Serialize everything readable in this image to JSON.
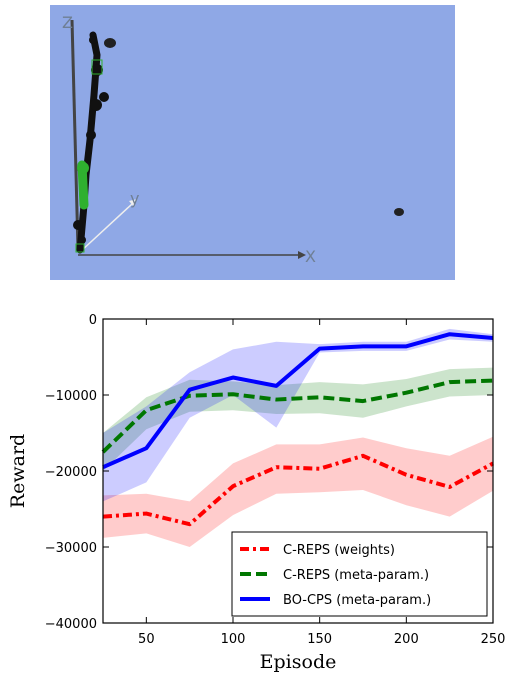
{
  "scene": {
    "background": "#8fa8e6",
    "axis_labels": {
      "z": "Z",
      "y": "y",
      "x": "X"
    },
    "robot_color": "#111111",
    "joint_color": "#2fb02f"
  },
  "chart_data": {
    "type": "line",
    "xlabel": "Episode",
    "ylabel": "Reward",
    "xlim": [
      25,
      250
    ],
    "ylim": [
      -40000,
      0
    ],
    "xticks": [
      50,
      100,
      150,
      200,
      250
    ],
    "yticks": [
      0,
      -10000,
      -20000,
      -30000,
      -40000
    ],
    "xtick_labels": [
      "50",
      "100",
      "150",
      "200",
      "250"
    ],
    "ytick_labels": [
      "0",
      "−10000",
      "−20000",
      "−30000",
      "−40000"
    ],
    "grid": false,
    "legend_position": "lower-right",
    "series": [
      {
        "name": "C-REPS (weights)",
        "color": "#ff0000",
        "style": "dashdot",
        "x": [
          25,
          50,
          75,
          100,
          125,
          150,
          175,
          200,
          225,
          250
        ],
        "y": [
          -26000,
          -25600,
          -27000,
          -22000,
          -19500,
          -19700,
          -18000,
          -20500,
          -22100,
          -19000
        ],
        "lower": [
          -28800,
          -28200,
          -30000,
          -25800,
          -23000,
          -22800,
          -22500,
          -24500,
          -26000,
          -22600
        ],
        "upper": [
          -23200,
          -23000,
          -24000,
          -19000,
          -16500,
          -16500,
          -15600,
          -17000,
          -18000,
          -15500
        ]
      },
      {
        "name": "C-REPS (meta-param.)",
        "color": "#007700",
        "style": "dashed",
        "x": [
          25,
          50,
          75,
          100,
          125,
          150,
          175,
          200,
          225,
          250
        ],
        "y": [
          -17500,
          -12000,
          -10100,
          -9900,
          -10600,
          -10300,
          -10800,
          -9700,
          -8300,
          -8100
        ],
        "lower": [
          -20000,
          -14500,
          -12200,
          -12000,
          -12500,
          -12400,
          -13000,
          -11500,
          -10200,
          -10000
        ],
        "upper": [
          -15000,
          -10300,
          -8000,
          -8200,
          -8700,
          -8300,
          -8600,
          -7900,
          -6600,
          -6400
        ]
      },
      {
        "name": "BO-CPS (meta-param.)",
        "color": "#0000ff",
        "style": "solid",
        "x": [
          25,
          50,
          75,
          100,
          125,
          150,
          175,
          200,
          225,
          250
        ],
        "y": [
          -19500,
          -17000,
          -9300,
          -7700,
          -8800,
          -3900,
          -3600,
          -3600,
          -2000,
          -2500
        ],
        "lower": [
          -24000,
          -21500,
          -13000,
          -10000,
          -14300,
          -4400,
          -4200,
          -4200,
          -2700,
          -3000
        ],
        "upper": [
          -15000,
          -11500,
          -7000,
          -4000,
          -3000,
          -3300,
          -3000,
          -3000,
          -1300,
          -2000
        ]
      }
    ]
  }
}
